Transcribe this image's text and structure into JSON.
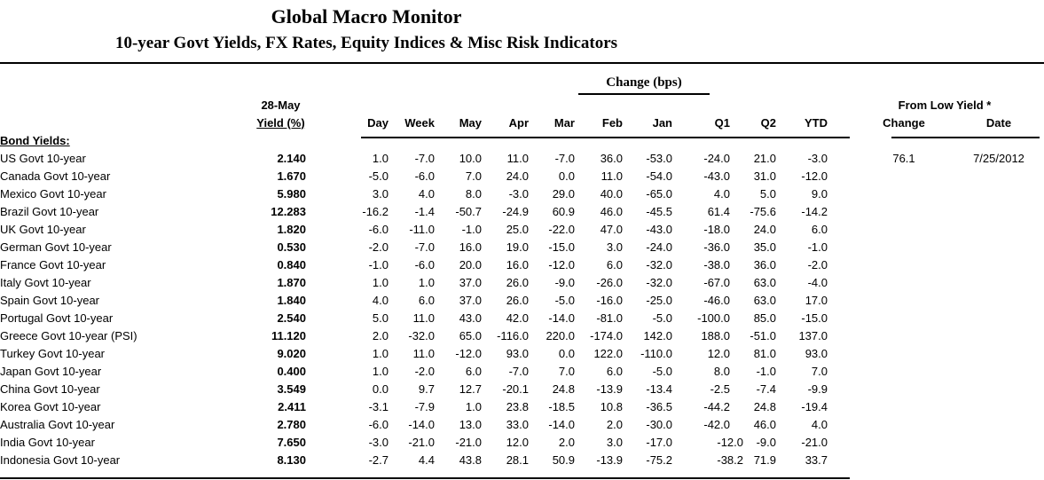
{
  "header": {
    "title": "Global Macro Monitor",
    "subtitle": "10-year Govt Yields, FX Rates, Equity Indices & Misc Risk Indicators"
  },
  "table": {
    "group_header": "Change (bps)",
    "asof_label": "28-May",
    "yield_label": "Yield (%)",
    "change_columns": [
      "Day",
      "Week",
      "May",
      "Apr",
      "Mar",
      "Feb",
      "Jan",
      "Q1",
      "Q2",
      "YTD"
    ],
    "from_low_header": "From Low Yield *",
    "from_low_columns": [
      "Change",
      "Date"
    ],
    "section_label": "Bond Yields:",
    "rows": [
      {
        "label": "US Govt 10-year",
        "yield": "2.140",
        "changes": [
          "1.0",
          "-7.0",
          "10.0",
          "11.0",
          "-7.0",
          "36.0",
          "-53.0",
          "-24.0",
          "21.0",
          "-3.0"
        ],
        "from_low_change": "76.1",
        "from_low_date": "7/25/2012"
      },
      {
        "label": "Canada Govt 10-year",
        "yield": "1.670",
        "changes": [
          "-5.0",
          "-6.0",
          "7.0",
          "24.0",
          "0.0",
          "11.0",
          "-54.0",
          "-43.0",
          "31.0",
          "-12.0"
        ],
        "from_low_change": "",
        "from_low_date": ""
      },
      {
        "label": "Mexico Govt 10-year",
        "yield": "5.980",
        "changes": [
          "3.0",
          "4.0",
          "8.0",
          "-3.0",
          "29.0",
          "40.0",
          "-65.0",
          "4.0",
          "5.0",
          "9.0"
        ],
        "from_low_change": "",
        "from_low_date": ""
      },
      {
        "label": "Brazil Govt 10-year",
        "yield": "12.283",
        "changes": [
          "-16.2",
          "-1.4",
          "-50.7",
          "-24.9",
          "60.9",
          "46.0",
          "-45.5",
          "61.4",
          "-75.6",
          "-14.2"
        ],
        "from_low_change": "",
        "from_low_date": ""
      },
      {
        "label": "UK Govt 10-year",
        "yield": "1.820",
        "changes": [
          "-6.0",
          "-11.0",
          "-1.0",
          "25.0",
          "-22.0",
          "47.0",
          "-43.0",
          "-18.0",
          "24.0",
          "6.0"
        ],
        "from_low_change": "",
        "from_low_date": ""
      },
      {
        "label": "German Govt 10-year",
        "yield": "0.530",
        "changes": [
          "-2.0",
          "-7.0",
          "16.0",
          "19.0",
          "-15.0",
          "3.0",
          "-24.0",
          "-36.0",
          "35.0",
          "-1.0"
        ],
        "from_low_change": "",
        "from_low_date": ""
      },
      {
        "label": "France Govt 10-year",
        "yield": "0.840",
        "changes": [
          "-1.0",
          "-6.0",
          "20.0",
          "16.0",
          "-12.0",
          "6.0",
          "-32.0",
          "-38.0",
          "36.0",
          "-2.0"
        ],
        "from_low_change": "",
        "from_low_date": ""
      },
      {
        "label": "Italy Govt 10-year",
        "yield": "1.870",
        "changes": [
          "1.0",
          "1.0",
          "37.0",
          "26.0",
          "-9.0",
          "-26.0",
          "-32.0",
          "-67.0",
          "63.0",
          "-4.0"
        ],
        "from_low_change": "",
        "from_low_date": ""
      },
      {
        "label": "Spain Govt 10-year",
        "yield": "1.840",
        "changes": [
          "4.0",
          "6.0",
          "37.0",
          "26.0",
          "-5.0",
          "-16.0",
          "-25.0",
          "-46.0",
          "63.0",
          "17.0"
        ],
        "from_low_change": "",
        "from_low_date": ""
      },
      {
        "label": "Portugal Govt 10-year",
        "yield": "2.540",
        "changes": [
          "5.0",
          "11.0",
          "43.0",
          "42.0",
          "-14.0",
          "-81.0",
          "-5.0",
          "-100.0",
          "85.0",
          "-15.0"
        ],
        "from_low_change": "",
        "from_low_date": ""
      },
      {
        "label": "Greece Govt 10-year (PSI)",
        "yield": "11.120",
        "changes": [
          "2.0",
          "-32.0",
          "65.0",
          "-116.0",
          "220.0",
          "-174.0",
          "142.0",
          "188.0",
          "-51.0",
          "137.0"
        ],
        "from_low_change": "",
        "from_low_date": ""
      },
      {
        "label": "Turkey Govt 10-year",
        "yield": "9.020",
        "changes": [
          "1.0",
          "11.0",
          "-12.0",
          "93.0",
          "0.0",
          "122.0",
          "-110.0",
          "12.0",
          "81.0",
          "93.0"
        ],
        "from_low_change": "",
        "from_low_date": ""
      },
      {
        "label": "Japan Govt 10-year",
        "yield": "0.400",
        "changes": [
          "1.0",
          "-2.0",
          "6.0",
          "-7.0",
          "7.0",
          "6.0",
          "-5.0",
          "8.0",
          "-1.0",
          "7.0"
        ],
        "from_low_change": "",
        "from_low_date": ""
      },
      {
        "label": "China Govt 10-year",
        "yield": "3.549",
        "changes": [
          "0.0",
          "9.7",
          "12.7",
          "-20.1",
          "24.8",
          "-13.9",
          "-13.4",
          "-2.5",
          "-7.4",
          "-9.9"
        ],
        "from_low_change": "",
        "from_low_date": ""
      },
      {
        "label": "Korea Govt 10-year",
        "yield": "2.411",
        "changes": [
          "-3.1",
          "-7.9",
          "1.0",
          "23.8",
          "-18.5",
          "10.8",
          "-36.5",
          "-44.2",
          "24.8",
          "-19.4"
        ],
        "from_low_change": "",
        "from_low_date": ""
      },
      {
        "label": "Australia Govt 10-year",
        "yield": "2.780",
        "changes": [
          "-6.0",
          "-14.0",
          "13.0",
          "33.0",
          "-14.0",
          "2.0",
          "-30.0",
          "-42.0",
          "46.0",
          "4.0"
        ],
        "from_low_change": "",
        "from_low_date": ""
      },
      {
        "label": "India Govt 10-year",
        "yield": "7.650",
        "changes": [
          "-3.0",
          "-21.0",
          "-21.0",
          "12.0",
          "2.0",
          "3.0",
          "-17.0",
          "-12.0",
          "-9.0",
          "-21.0"
        ],
        "q1_shifted": true,
        "from_low_change": "",
        "from_low_date": ""
      },
      {
        "label": "Indonesia Govt 10-year",
        "yield": "8.130",
        "changes": [
          "-2.7",
          "4.4",
          "43.8",
          "28.1",
          "50.9",
          "-13.9",
          "-75.2",
          "-38.2",
          "71.9",
          "33.7"
        ],
        "q1_shifted": true,
        "from_low_change": "",
        "from_low_date": ""
      }
    ]
  }
}
